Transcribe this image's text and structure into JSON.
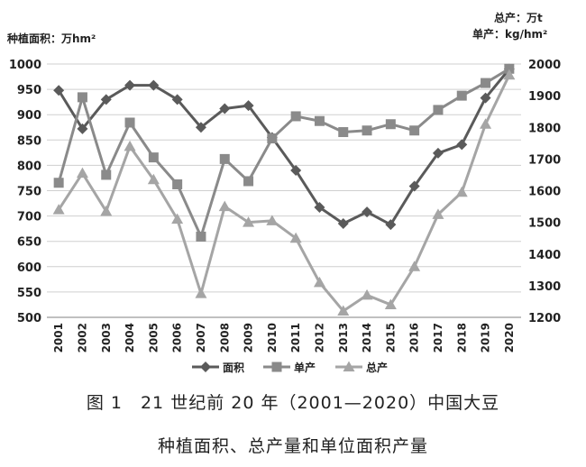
{
  "chart_data": {
    "type": "line",
    "x": [
      "2001",
      "2002",
      "2003",
      "2004",
      "2005",
      "2006",
      "2007",
      "2008",
      "2009",
      "2010",
      "2011",
      "2012",
      "2013",
      "2014",
      "2015",
      "2016",
      "2017",
      "2018",
      "2019",
      "2020"
    ],
    "y_left_label": "种植面积：万hm²",
    "y_right_label_1": "总产：万t",
    "y_right_label_2": "单产：kg/hm²",
    "ylim_left": [
      500,
      1000
    ],
    "ylim_right": [
      1200,
      2000
    ],
    "left_ticks": [
      "500",
      "550",
      "600",
      "650",
      "700",
      "750",
      "800",
      "850",
      "900",
      "950",
      "1000"
    ],
    "right_ticks": [
      "1200",
      "1300",
      "1400",
      "1500",
      "1600",
      "1700",
      "1800",
      "1900",
      "2000"
    ],
    "grid": "horizontal",
    "legend_position": "bottom",
    "series": [
      {
        "name": "面积",
        "axis": "left",
        "marker": "diamond",
        "color": "#5a5a5a",
        "values": [
          948,
          872,
          930,
          958,
          958,
          930,
          875,
          912,
          918,
          855,
          790,
          717,
          685,
          708,
          683,
          759,
          824,
          841,
          933,
          990
        ]
      },
      {
        "name": "单产",
        "axis": "right",
        "marker": "square",
        "color": "#8a8a8a",
        "values": [
          1625,
          1895,
          1650,
          1815,
          1705,
          1620,
          1455,
          1700,
          1630,
          1765,
          1835,
          1820,
          1785,
          1790,
          1810,
          1790,
          1855,
          1900,
          1940,
          1985
        ]
      },
      {
        "name": "总产",
        "axis": "right",
        "marker": "triangle",
        "color": "#a5a5a5",
        "values": [
          1540,
          1655,
          1535,
          1740,
          1635,
          1510,
          1275,
          1550,
          1500,
          1505,
          1450,
          1310,
          1220,
          1270,
          1240,
          1360,
          1525,
          1595,
          1810,
          1965
        ]
      }
    ]
  },
  "caption": {
    "line1": "图 1　21 世纪前 20 年（2001—2020）中国大豆",
    "line2": "种植面积、总产量和单位面积产量"
  }
}
